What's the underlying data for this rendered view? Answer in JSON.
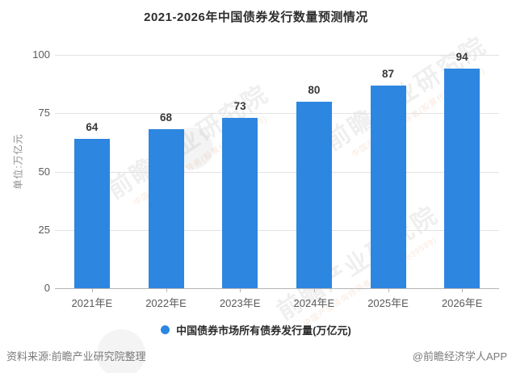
{
  "title": "2021-2026年中国债券发行数量预测情况",
  "y_axis": {
    "unit_label": "单位:万亿元"
  },
  "chart_data": {
    "type": "bar",
    "title": "2021-2026年中国债券发行数量预测情况",
    "categories": [
      "2021年E",
      "2022年E",
      "2023年E",
      "2024年E",
      "2025年E",
      "2026年E"
    ],
    "values": [
      64,
      68,
      73,
      80,
      87,
      94
    ],
    "ylabel": "单位:万亿元",
    "ylim": [
      0,
      100
    ],
    "yticks": [
      0,
      25,
      50,
      75,
      100
    ],
    "grid": true,
    "legend": [
      "中国债券市场所有债券发行量(万亿元)"
    ],
    "legend_position": "bottom",
    "bar_color": "#2d86e0"
  },
  "legend": {
    "label": "中国债券市场所有债券发行量(万亿元)",
    "marker_color": "#2d86e0"
  },
  "footer": {
    "source": "资料来源:前瞻产业研究院整理",
    "credit": "@前瞻经济学人APP"
  },
  "watermark": {
    "text": "前瞻产业研究院",
    "subtext": "中国产业咨询领导者(股票代码:839599)"
  },
  "colors": {
    "bar": "#2d86e0",
    "gridline": "#e2e2e2",
    "axis": "#b5b5b5",
    "title_text": "#2e2e2e",
    "tick_text": "#595959",
    "footer_text": "#7a7a7a"
  }
}
